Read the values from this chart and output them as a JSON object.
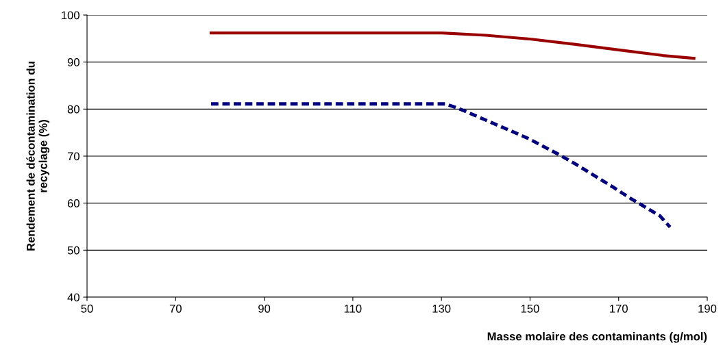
{
  "chart_data": {
    "type": "line",
    "xlabel": "Masse molaire des contaminants (g/mol)",
    "ylabel": "Rendement de décontamination du\nrecyclage (%)",
    "xlim": [
      50,
      190
    ],
    "xticks": [
      50,
      70,
      90,
      110,
      130,
      150,
      170,
      190
    ],
    "ylim": [
      40,
      100
    ],
    "yticks": [
      40,
      50,
      60,
      70,
      80,
      90,
      100
    ],
    "grid": "y",
    "marker": "none",
    "series": [
      {
        "color": "#990000",
        "line_style": "solid",
        "x": [
          78,
          130,
          140,
          150,
          160,
          170,
          180,
          187
        ],
        "values": [
          96.2,
          96.2,
          95.7,
          94.9,
          93.8,
          92.6,
          91.4,
          90.8
        ]
      },
      {
        "color": "#000080",
        "line_style": "dashed",
        "x": [
          78,
          130.9,
          133.7,
          138.2,
          149.5,
          156.4,
          160.3,
          169.1,
          172.7,
          179.3,
          181.6
        ],
        "values": [
          81.1,
          81.1,
          80.2,
          78.4,
          73.8,
          70.4,
          68.3,
          63.2,
          61.0,
          57.3,
          54.9
        ]
      }
    ]
  }
}
